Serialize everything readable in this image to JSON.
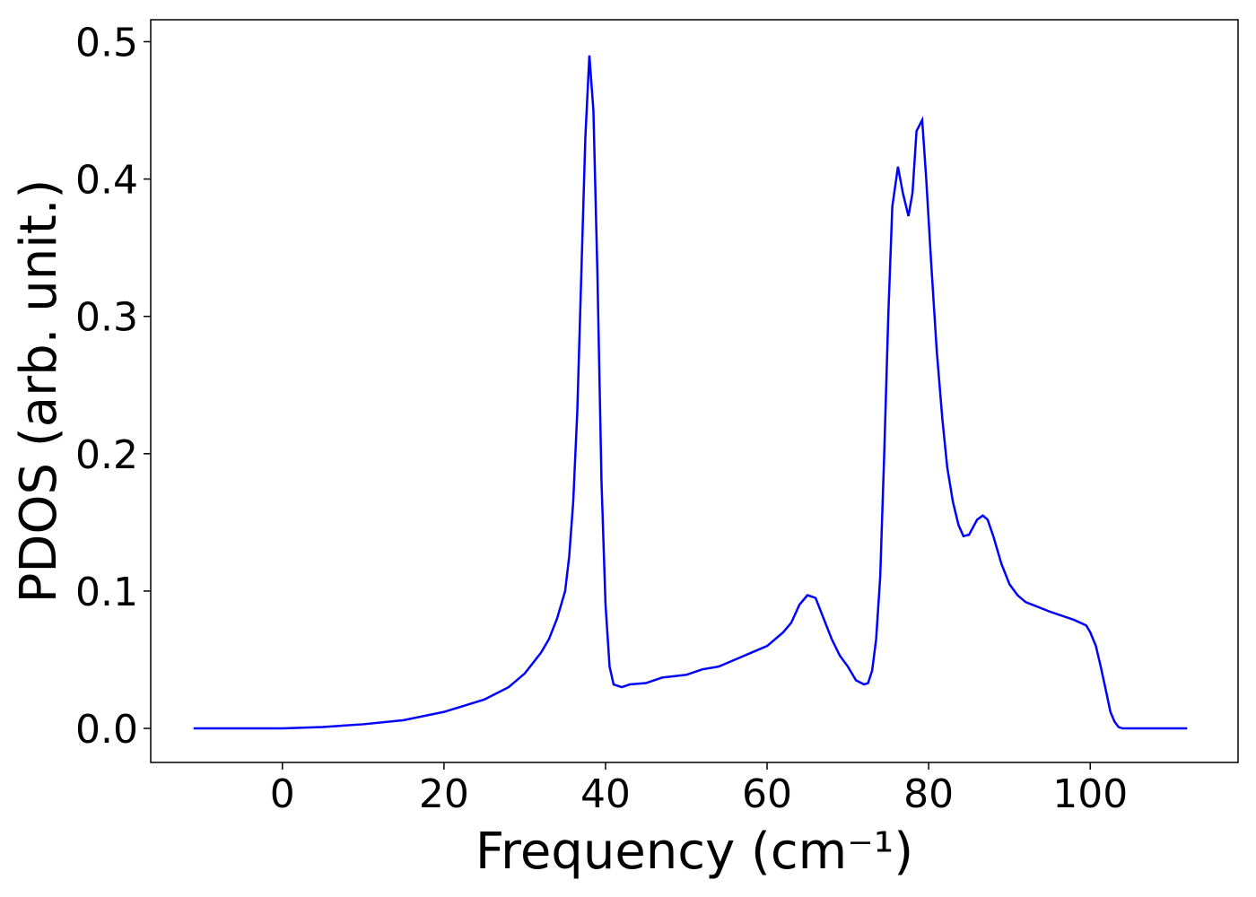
{
  "chart_data": {
    "type": "line",
    "xlabel": "Frequency (cm⁻¹)",
    "ylabel": "PDOS (arb. unit.)",
    "x": [
      -11,
      0,
      5,
      10,
      15,
      20,
      25,
      28,
      30,
      32,
      33,
      34,
      35,
      35.5,
      36,
      36.5,
      37,
      37.5,
      38,
      38.5,
      39,
      39.5,
      40,
      40.5,
      41,
      42,
      43,
      45,
      47,
      50,
      52,
      54,
      56,
      58,
      60,
      62,
      63,
      64,
      65,
      66,
      67,
      68,
      69,
      70,
      71,
      72,
      72.5,
      73,
      73.5,
      74,
      74.5,
      75,
      75.5,
      76.2,
      76.8,
      77.5,
      78,
      78.5,
      79.2,
      79.7,
      80.3,
      81,
      81.7,
      82.3,
      83,
      83.7,
      84.3,
      85,
      86,
      86.7,
      87.3,
      88,
      89,
      90,
      91,
      92,
      95,
      98,
      99.5,
      100,
      100.7,
      101.3,
      102,
      102.5,
      103,
      103.5,
      104,
      112
    ],
    "series": [
      {
        "name": "PDOS",
        "color": "#0000ff",
        "values": [
          0,
          0,
          0.001,
          0.003,
          0.006,
          0.012,
          0.021,
          0.03,
          0.04,
          0.055,
          0.065,
          0.08,
          0.1,
          0.125,
          0.165,
          0.23,
          0.33,
          0.43,
          0.49,
          0.45,
          0.33,
          0.18,
          0.09,
          0.045,
          0.032,
          0.03,
          0.032,
          0.033,
          0.037,
          0.039,
          0.043,
          0.045,
          0.05,
          0.055,
          0.06,
          0.07,
          0.077,
          0.09,
          0.097,
          0.095,
          0.08,
          0.065,
          0.053,
          0.045,
          0.035,
          0.032,
          0.033,
          0.042,
          0.065,
          0.11,
          0.2,
          0.3,
          0.38,
          0.409,
          0.39,
          0.373,
          0.39,
          0.435,
          0.443,
          0.4,
          0.34,
          0.275,
          0.225,
          0.19,
          0.165,
          0.148,
          0.14,
          0.141,
          0.152,
          0.155,
          0.152,
          0.14,
          0.12,
          0.105,
          0.097,
          0.092,
          0.085,
          0.079,
          0.075,
          0.07,
          0.06,
          0.045,
          0.026,
          0.012,
          0.005,
          0.001,
          0,
          0
        ]
      }
    ],
    "xlim": [
      -16.3,
      118.3
    ],
    "ylim": [
      -0.0248,
      0.516
    ],
    "xticks": [
      0,
      20,
      40,
      60,
      80,
      100
    ],
    "yticks": [
      {
        "value": 0,
        "label": "0.0"
      },
      0.1,
      0.2,
      0.3,
      0.4,
      0.5
    ]
  }
}
